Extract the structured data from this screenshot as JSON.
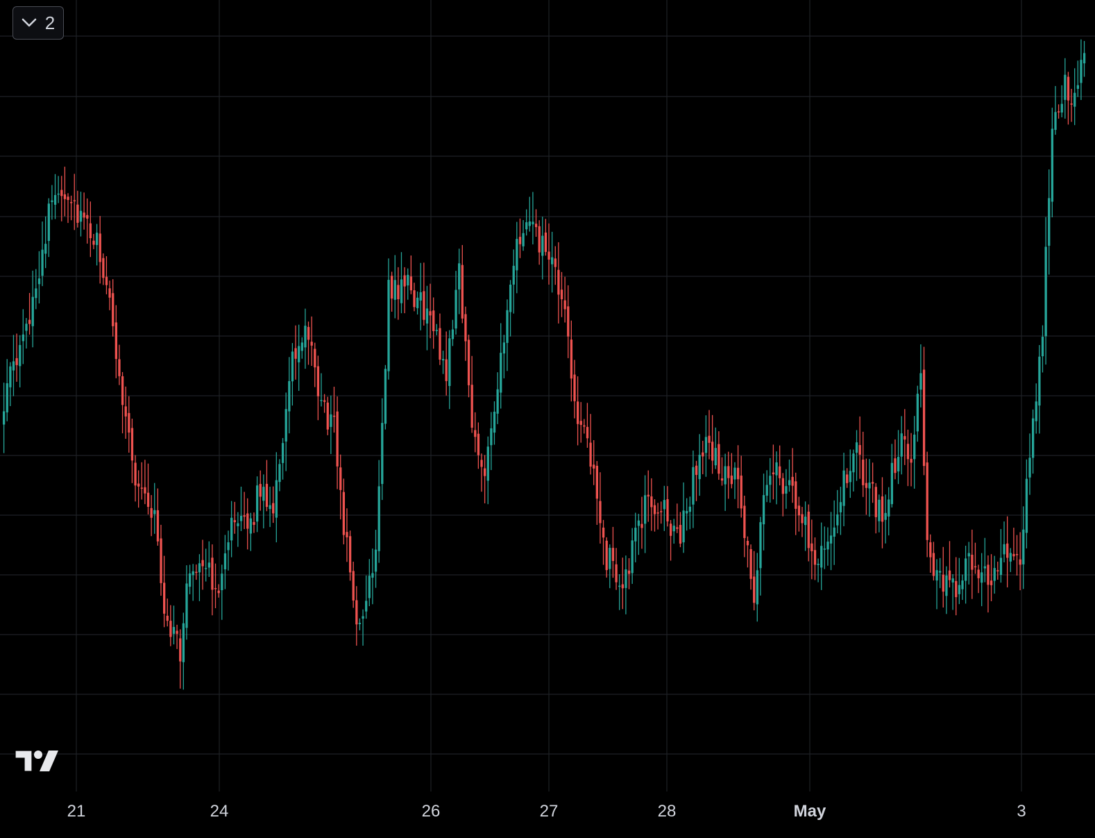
{
  "pane_toggle": {
    "icon": "chevron-down-icon",
    "count": "2"
  },
  "logo": {
    "name": "tradingview-logo"
  },
  "colors": {
    "background": "#000000",
    "grid": "#1f2126",
    "up": "#26a69a",
    "down": "#ef5350",
    "text": "#d1d4dc"
  },
  "chart_data": {
    "type": "candlestick",
    "title": "",
    "xlabel": "",
    "ylabel": "",
    "grid": true,
    "legend": "none",
    "x_tick_labels": [
      {
        "label": "21",
        "bold": false
      },
      {
        "label": "24",
        "bold": false
      },
      {
        "label": "26",
        "bold": false
      },
      {
        "label": "27",
        "bold": false
      },
      {
        "label": "28",
        "bold": false
      },
      {
        "label": "May",
        "bold": true
      },
      {
        "label": "3",
        "bold": false
      }
    ],
    "price_range_relative": [
      0,
      100
    ],
    "anchor_closes_relative": [
      [
        0,
        50
      ],
      [
        6,
        58
      ],
      [
        11,
        70
      ],
      [
        16,
        82
      ],
      [
        20,
        81
      ],
      [
        26,
        75
      ],
      [
        30,
        72
      ],
      [
        35,
        57
      ],
      [
        41,
        38
      ],
      [
        47,
        32
      ],
      [
        50,
        18
      ],
      [
        55,
        12
      ],
      [
        58,
        24
      ],
      [
        62,
        26
      ],
      [
        66,
        20
      ],
      [
        70,
        30
      ],
      [
        76,
        30
      ],
      [
        80,
        36
      ],
      [
        84,
        34
      ],
      [
        90,
        55
      ],
      [
        94,
        60
      ],
      [
        99,
        49
      ],
      [
        103,
        45
      ],
      [
        107,
        27
      ],
      [
        111,
        14
      ],
      [
        116,
        28
      ],
      [
        120,
        66
      ],
      [
        125,
        67
      ],
      [
        132,
        63
      ],
      [
        138,
        54
      ],
      [
        142,
        70
      ],
      [
        146,
        45
      ],
      [
        150,
        40
      ],
      [
        156,
        58
      ],
      [
        160,
        73
      ],
      [
        163,
        76
      ],
      [
        169,
        72
      ],
      [
        174,
        65
      ],
      [
        178,
        50
      ],
      [
        183,
        40
      ],
      [
        188,
        26
      ],
      [
        193,
        22
      ],
      [
        198,
        30
      ],
      [
        201,
        35
      ],
      [
        205,
        33
      ],
      [
        211,
        29
      ],
      [
        216,
        40
      ],
      [
        220,
        43
      ],
      [
        225,
        38
      ],
      [
        229,
        37
      ],
      [
        234,
        18
      ],
      [
        237,
        36
      ],
      [
        240,
        40
      ],
      [
        246,
        35
      ],
      [
        249,
        32
      ],
      [
        253,
        26
      ],
      [
        258,
        30
      ],
      [
        262,
        37
      ],
      [
        266,
        41
      ],
      [
        270,
        36
      ],
      [
        274,
        32
      ],
      [
        279,
        43
      ],
      [
        283,
        42
      ],
      [
        286,
        55
      ],
      [
        288,
        28
      ],
      [
        291,
        22
      ],
      [
        296,
        21
      ],
      [
        302,
        25
      ],
      [
        308,
        23
      ],
      [
        314,
        27
      ],
      [
        317,
        25
      ],
      [
        321,
        46
      ],
      [
        324,
        60
      ],
      [
        327,
        92
      ],
      [
        331,
        98
      ],
      [
        333,
        96
      ],
      [
        337,
        100
      ]
    ]
  }
}
